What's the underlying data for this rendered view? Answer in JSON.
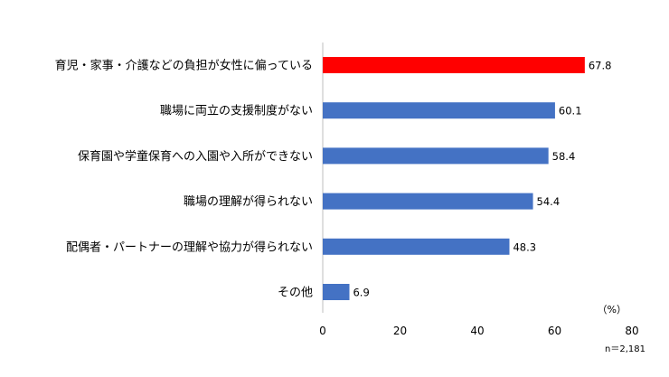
{
  "chart_data": {
    "type": "bar",
    "orientation": "horizontal",
    "categories": [
      "育児・家事・介護などの負担が女性に偏っている",
      "職場に両立の支援制度がない",
      "保育園や学童保育への入園や入所ができない",
      "職場の理解が得られない",
      "配偶者・パートナーの理解や協力が得られない",
      "その他"
    ],
    "values": [
      67.8,
      60.1,
      58.4,
      54.4,
      48.3,
      6.9
    ],
    "value_labels": [
      "67.8",
      "60.1",
      "58.4",
      "54.4",
      "48.3",
      "6.9"
    ],
    "bar_colors": [
      "#ff0000",
      "#4472c4",
      "#4472c4",
      "#4472c4",
      "#4472c4",
      "#4472c4"
    ],
    "xlim": [
      0,
      80
    ],
    "xticks": [
      0,
      20,
      40,
      60,
      80
    ],
    "xtick_labels": [
      "0",
      "20",
      "40",
      "60",
      "80"
    ],
    "unit": "（%）",
    "note": "n＝2,181",
    "grid": false,
    "legend": "none"
  }
}
